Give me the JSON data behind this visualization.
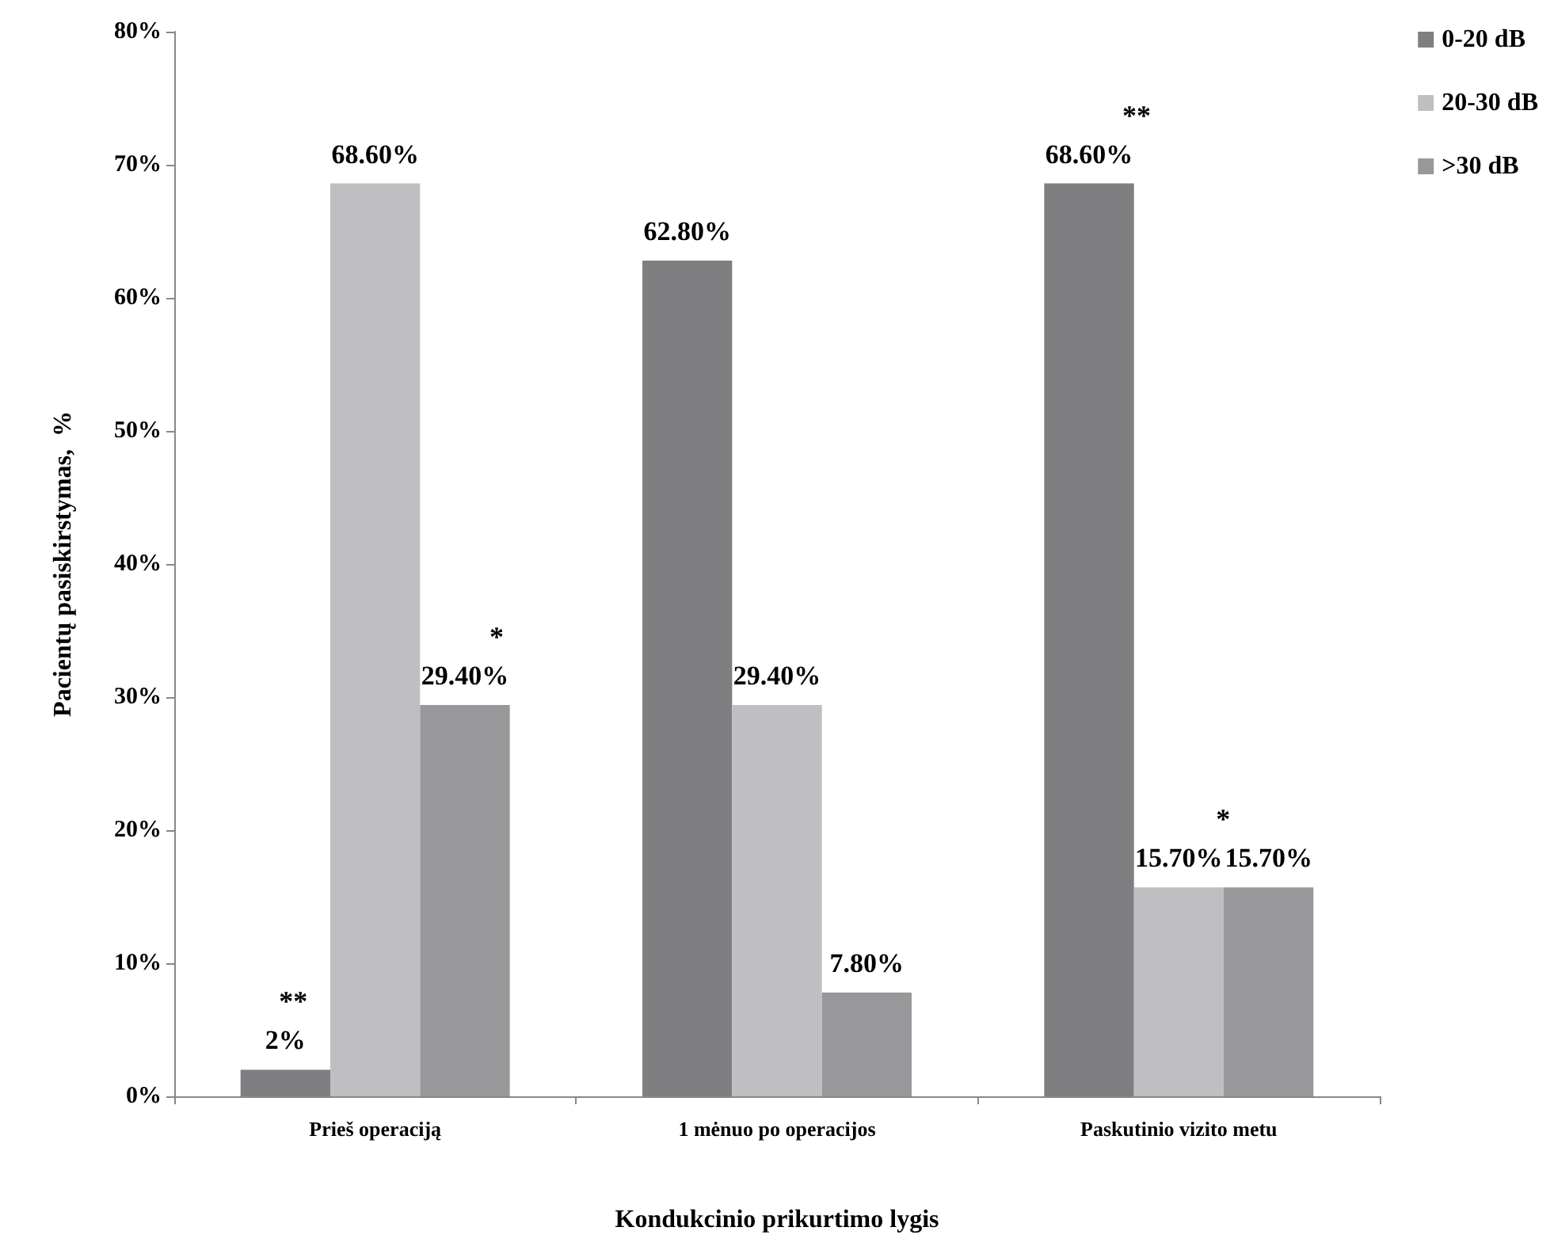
{
  "chart_data": {
    "type": "bar",
    "xlabel": "Kondukcinio prikurtimo lygis",
    "ylabel": "Pacientų pasiskirstymas,  %",
    "categories": [
      "Prieš operaciją",
      "1 mėnuo po operacijos",
      "Paskutinio vizito metu"
    ],
    "series": [
      {
        "name": "0-20 dB",
        "color": "#7f7f82",
        "values": [
          2,
          62.8,
          68.6
        ],
        "value_labels": [
          "2%",
          "62.80%",
          "68.60%"
        ]
      },
      {
        "name": "20-30 dB",
        "color": "#bfbfc1",
        "values": [
          68.6,
          29.4,
          15.7
        ],
        "value_labels": [
          "68.60%",
          "29.40%",
          "15.70%"
        ]
      },
      {
        "name": ">30 dB",
        "color": "#98989b",
        "values": [
          29.4,
          7.8,
          15.7
        ],
        "value_labels": [
          "29.40%",
          "7.80%",
          "15.70%"
        ]
      }
    ],
    "ylim": [
      0,
      80
    ],
    "yticks": [
      {
        "value": 0,
        "label": "0%"
      },
      {
        "value": 10,
        "label": "10%"
      },
      {
        "value": 20,
        "label": "20%"
      },
      {
        "value": 30,
        "label": "30%"
      },
      {
        "value": 40,
        "label": "40%"
      },
      {
        "value": 50,
        "label": "50%"
      },
      {
        "value": 60,
        "label": "60%"
      },
      {
        "value": 70,
        "label": "70%"
      },
      {
        "value": 80,
        "label": "80%"
      }
    ],
    "annotations": [
      "**",
      "*",
      "**",
      "*"
    ],
    "grid": false,
    "legend": "top right"
  }
}
